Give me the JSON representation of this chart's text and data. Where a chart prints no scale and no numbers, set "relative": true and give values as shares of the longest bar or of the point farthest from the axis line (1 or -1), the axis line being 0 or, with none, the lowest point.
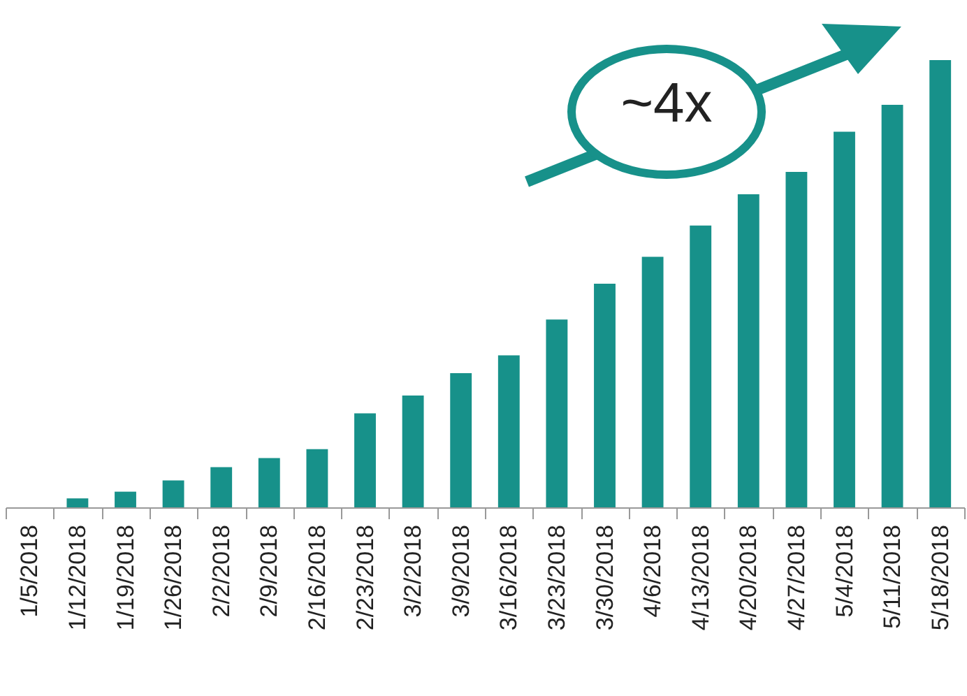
{
  "chart_data": {
    "type": "bar",
    "relative": true,
    "color": "#17918a",
    "grid": false,
    "categories": [
      "1/5/2018",
      "1/12/2018",
      "1/19/2018",
      "1/26/2018",
      "2/2/2018",
      "2/9/2018",
      "2/16/2018",
      "2/23/2018",
      "3/2/2018",
      "3/9/2018",
      "3/16/2018",
      "3/23/2018",
      "3/30/2018",
      "4/6/2018",
      "4/13/2018",
      "4/20/2018",
      "4/27/2018",
      "5/4/2018",
      "5/11/2018",
      "5/18/2018"
    ],
    "values": [
      0,
      0.02,
      0.035,
      0.06,
      0.09,
      0.11,
      0.13,
      0.21,
      0.25,
      0.3,
      0.34,
      0.42,
      0.5,
      0.56,
      0.63,
      0.7,
      0.75,
      0.84,
      0.9,
      1
    ],
    "annotations": [
      "~4x"
    ]
  }
}
